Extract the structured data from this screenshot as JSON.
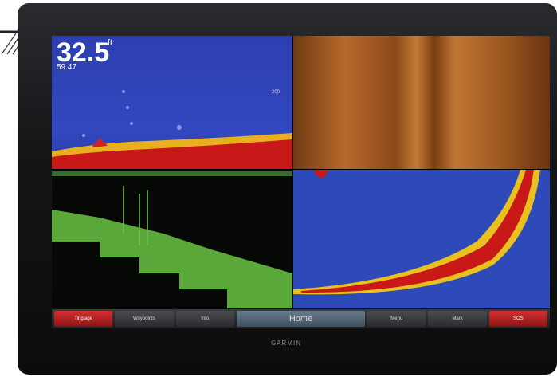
{
  "screen": {
    "depth": "32.5",
    "depth_unit": "ft",
    "temperature": "59.47",
    "scale_label": "200"
  },
  "buttons": [
    "Tinglage",
    "Waypoints",
    "Info",
    "Home",
    "Menu",
    "Mark",
    "SOS"
  ],
  "brand": "GARMIN"
}
